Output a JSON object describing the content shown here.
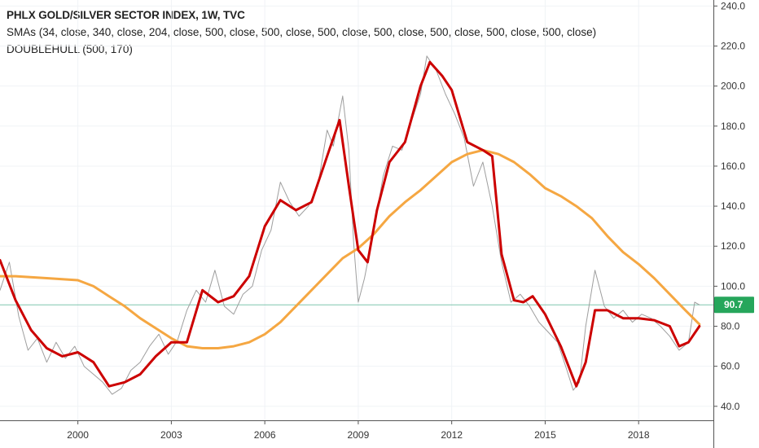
{
  "header": {
    "title": "PHLX GOLD/SILVER SECTOR INDEX, 1W, TVC",
    "sma_line": "SMAs (34, close, 340, close, 204, close, 500, close, 500, close, 500, close, 500, close, 500, close, 500, close, 500, close)",
    "doublehull_line": "DOUBLEHULL (500, 170)"
  },
  "colors": {
    "price": "#9e9e9e",
    "hull": "#cc0000",
    "sma": "#f5a742",
    "last_price_line": "#5fb89a",
    "badge": "#26a65b"
  },
  "chart_data": {
    "type": "line",
    "xlim": [
      1997.5,
      2020.4
    ],
    "ylim": [
      33,
      243
    ],
    "x_ticks": [
      {
        "value": 2000,
        "label": "2000"
      },
      {
        "value": 2003,
        "label": "2003"
      },
      {
        "value": 2006,
        "label": "2006"
      },
      {
        "value": 2009,
        "label": "2009"
      },
      {
        "value": 2012,
        "label": "2012"
      },
      {
        "value": 2015,
        "label": "2015"
      },
      {
        "value": 2018,
        "label": "2018"
      }
    ],
    "y_ticks": [
      {
        "value": 40,
        "label": "40.0"
      },
      {
        "value": 60,
        "label": "60.0"
      },
      {
        "value": 80,
        "label": "80.0"
      },
      {
        "value": 100,
        "label": "100.0"
      },
      {
        "value": 120,
        "label": "120.0"
      },
      {
        "value": 140,
        "label": "140.0"
      },
      {
        "value": 160,
        "label": "160.0"
      },
      {
        "value": 180,
        "label": "180.0"
      },
      {
        "value": 200,
        "label": "200.0"
      },
      {
        "value": 220,
        "label": "220.0"
      },
      {
        "value": 240,
        "label": "240.0"
      }
    ],
    "last_price": {
      "value": 90.7,
      "label": "90.7"
    },
    "series": [
      {
        "id": "price",
        "x": [
          1997.5,
          1997.8,
          1998.1,
          1998.4,
          1998.7,
          1999.0,
          1999.3,
          1999.6,
          1999.9,
          2000.2,
          2000.5,
          2000.8,
          2001.1,
          2001.4,
          2001.7,
          2002.0,
          2002.3,
          2002.6,
          2002.9,
          2003.2,
          2003.5,
          2003.8,
          2004.1,
          2004.4,
          2004.7,
          2005.0,
          2005.3,
          2005.6,
          2005.9,
          2006.2,
          2006.5,
          2006.8,
          2007.1,
          2007.4,
          2007.7,
          2008.0,
          2008.2,
          2008.5,
          2008.7,
          2008.85,
          2009.0,
          2009.2,
          2009.5,
          2009.8,
          2010.1,
          2010.4,
          2010.7,
          2011.0,
          2011.2,
          2011.5,
          2011.8,
          2012.1,
          2012.4,
          2012.7,
          2013.0,
          2013.3,
          2013.6,
          2013.9,
          2014.2,
          2014.5,
          2014.8,
          2015.1,
          2015.4,
          2015.7,
          2015.9,
          2016.1,
          2016.3,
          2016.6,
          2016.9,
          2017.2,
          2017.5,
          2017.8,
          2018.1,
          2018.4,
          2018.7,
          2019.0,
          2019.3,
          2019.6,
          2019.8,
          2019.95
        ],
        "values": [
          98,
          112,
          85,
          68,
          74,
          62,
          72,
          64,
          70,
          60,
          56,
          52,
          46,
          49,
          58,
          62,
          70,
          76,
          66,
          73,
          88,
          98,
          92,
          108,
          90,
          86,
          96,
          100,
          118,
          128,
          152,
          142,
          135,
          140,
          150,
          178,
          170,
          195,
          168,
          122,
          92,
          104,
          128,
          155,
          170,
          168,
          182,
          196,
          215,
          208,
          196,
          186,
          174,
          150,
          162,
          140,
          112,
          92,
          96,
          90,
          82,
          77,
          72,
          58,
          48,
          52,
          80,
          108,
          90,
          84,
          88,
          82,
          86,
          84,
          80,
          75,
          68,
          72,
          92,
          90.7
        ]
      },
      {
        "id": "hull",
        "x": [
          1997.5,
          1998.0,
          1998.5,
          1999.0,
          1999.5,
          2000.0,
          2000.5,
          2001.0,
          2001.5,
          2002.0,
          2002.5,
          2003.0,
          2003.5,
          2004.0,
          2004.5,
          2005.0,
          2005.5,
          2006.0,
          2006.5,
          2007.0,
          2007.5,
          2008.0,
          2008.4,
          2008.7,
          2009.0,
          2009.3,
          2009.6,
          2010.0,
          2010.5,
          2011.0,
          2011.3,
          2011.7,
          2012.0,
          2012.5,
          2013.0,
          2013.3,
          2013.6,
          2014.0,
          2014.3,
          2014.6,
          2015.0,
          2015.5,
          2016.0,
          2016.3,
          2016.6,
          2017.0,
          2017.5,
          2018.0,
          2018.5,
          2019.0,
          2019.3,
          2019.6,
          2019.95
        ],
        "values": [
          113,
          93,
          78,
          69,
          65,
          67,
          62,
          50,
          52,
          56,
          65,
          72,
          72,
          98,
          92,
          95,
          105,
          130,
          143,
          138,
          142,
          165,
          183,
          150,
          118,
          112,
          138,
          162,
          172,
          200,
          212,
          205,
          198,
          172,
          168,
          165,
          116,
          93,
          92,
          95,
          86,
          70,
          50,
          62,
          88,
          88,
          84,
          84,
          83,
          80,
          70,
          72,
          80
        ]
      },
      {
        "id": "sma",
        "x": [
          1997.5,
          1998.0,
          1999.0,
          2000.0,
          2000.5,
          2001.0,
          2001.5,
          2002.0,
          2002.5,
          2003.0,
          2003.5,
          2004.0,
          2004.5,
          2005.0,
          2005.5,
          2006.0,
          2006.5,
          2007.0,
          2007.5,
          2008.0,
          2008.5,
          2009.0,
          2009.5,
          2010.0,
          2010.5,
          2011.0,
          2011.5,
          2012.0,
          2012.5,
          2013.0,
          2013.5,
          2014.0,
          2014.5,
          2015.0,
          2015.5,
          2016.0,
          2016.5,
          2017.0,
          2017.5,
          2018.0,
          2018.5,
          2019.0,
          2019.5,
          2019.95
        ],
        "values": [
          105,
          105,
          104,
          103,
          100,
          95,
          90,
          84,
          79,
          74,
          70,
          69,
          69,
          70,
          72,
          76,
          82,
          90,
          98,
          106,
          114,
          119,
          126,
          135,
          142,
          148,
          155,
          162,
          166,
          168,
          166,
          162,
          156,
          149,
          145,
          140,
          134,
          125,
          117,
          111,
          104,
          96,
          88,
          81
        ]
      }
    ]
  }
}
